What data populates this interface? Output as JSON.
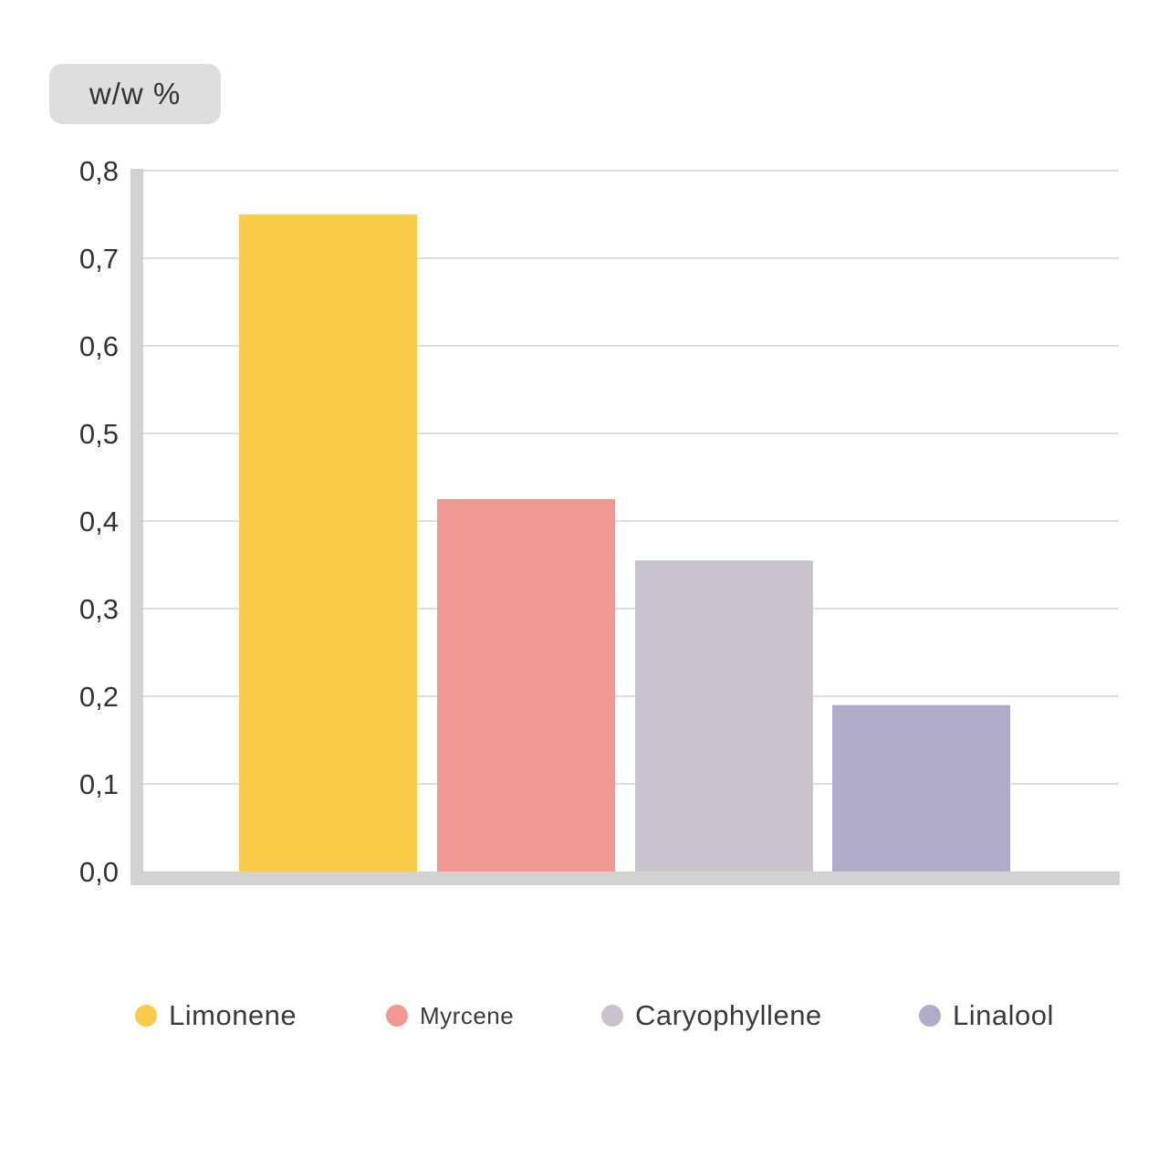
{
  "unit_label": "w/w %",
  "chart_data": {
    "type": "bar",
    "categories": [
      "Limonene",
      "Myrcene",
      "Caryophyllene",
      "Linalool"
    ],
    "values": [
      0.75,
      0.425,
      0.355,
      0.19
    ],
    "colors": [
      "#fbcc4a",
      "#f29893",
      "#c8c3cc",
      "#b1abc9"
    ],
    "ylabel": "w/w %",
    "ylim": [
      0,
      0.8
    ],
    "yticks": [
      "0,0",
      "0,1",
      "0,2",
      "0,3",
      "0,4",
      "0,5",
      "0,6",
      "0,7",
      "0,8"
    ],
    "grid": true,
    "legend_position": "bottom"
  },
  "legend": [
    {
      "label": "Limonene",
      "color": "#fbcc4a"
    },
    {
      "label": "Myrcene",
      "color": "#f29893"
    },
    {
      "label": "Caryophyllene",
      "color": "#c8c3cc"
    },
    {
      "label": "Linalool",
      "color": "#b1abc9"
    }
  ]
}
